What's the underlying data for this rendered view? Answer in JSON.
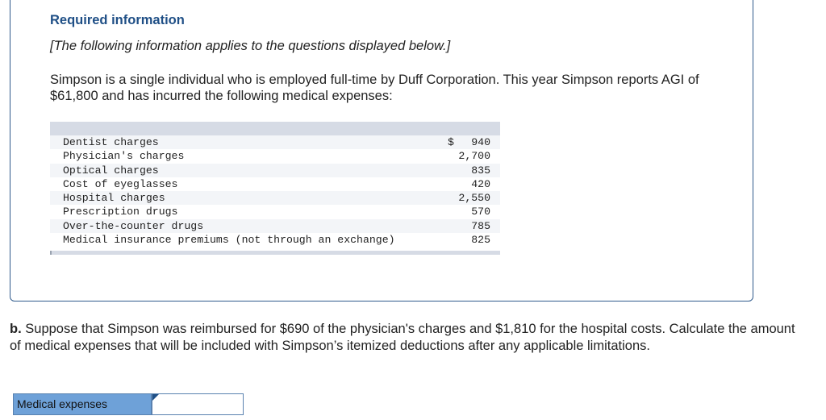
{
  "info": {
    "title": "Required information",
    "note": "[The following information applies to the questions displayed below.]",
    "body": "Simpson is a single individual who is employed full-time by Duff Corporation. This year Simpson reports AGI of $61,800 and has incurred the following medical expenses:"
  },
  "expenses": {
    "currency_symbol": "$",
    "rows": [
      {
        "label": "Dentist charges",
        "amount": "940"
      },
      {
        "label": "Physician's charges",
        "amount": "2,700"
      },
      {
        "label": "Optical charges",
        "amount": "835"
      },
      {
        "label": "Cost of eyeglasses",
        "amount": "420"
      },
      {
        "label": "Hospital charges",
        "amount": "2,550"
      },
      {
        "label": "Prescription drugs",
        "amount": "570"
      },
      {
        "label": "Over-the-counter drugs",
        "amount": "785"
      },
      {
        "label": "Medical insurance premiums (not through an exchange)",
        "amount": "825"
      }
    ]
  },
  "question": {
    "part": "b.",
    "text": "Suppose that Simpson was reimbursed for $690 of the physician's charges and $1,810 for the hospital costs. Calculate the amount of medical expenses that will be included with Simpson’s itemized deductions after any applicable limitations."
  },
  "answer": {
    "label": "Medical expenses",
    "value": ""
  }
}
